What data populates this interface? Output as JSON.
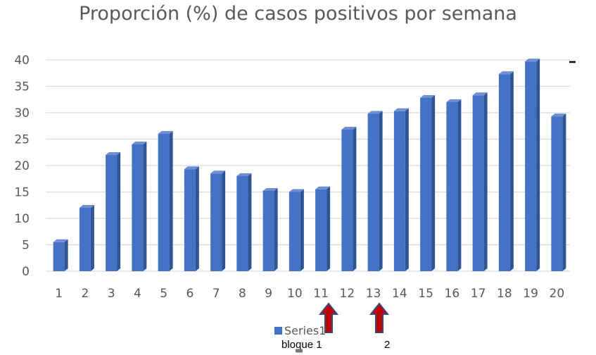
{
  "chart_data": {
    "type": "bar",
    "title": "Proporción (%) de casos positivos por semana",
    "xlabel": "",
    "ylabel": "",
    "categories": [
      "1",
      "2",
      "3",
      "4",
      "5",
      "6",
      "7",
      "8",
      "9",
      "10",
      "11",
      "12",
      "13",
      "14",
      "15",
      "16",
      "17",
      "18",
      "19",
      "20"
    ],
    "series": [
      {
        "name": "Series1",
        "values": [
          5.5,
          12,
          22,
          24,
          26,
          19.3,
          18.5,
          18,
          15.2,
          15,
          15.5,
          26.8,
          29.8,
          30.3,
          32.8,
          32,
          33.3,
          37.3,
          39.7,
          29.3
        ]
      }
    ],
    "ylim": [
      0,
      40
    ],
    "yticks": [
      "0",
      "5",
      "10",
      "15",
      "20",
      "25",
      "30",
      "35",
      "40"
    ],
    "grid": true,
    "legend_position": "bottom",
    "colors": {
      "bar": "#4472C4",
      "bar_side": "#2F5597",
      "bar_top": "#6F8FD2",
      "grid": "#D9D9D9",
      "arrow": "#C00000",
      "arrow_outline": "#3B4A7A"
    }
  },
  "annotations": {
    "label_1": "bloque 1",
    "label_2": "2"
  }
}
